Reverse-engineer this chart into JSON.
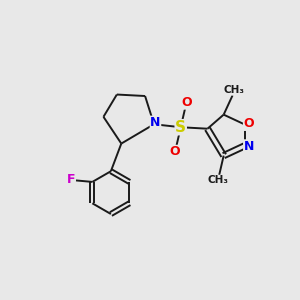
{
  "bg_color": "#e8e8e8",
  "bond_color": "#1a1a1a",
  "atom_colors": {
    "N": "#0000ee",
    "O": "#ee0000",
    "S": "#cccc00",
    "F": "#cc00cc",
    "C": "#1a1a1a"
  },
  "font_size": 9,
  "fig_size": [
    3.0,
    3.0
  ],
  "dpi": 100
}
